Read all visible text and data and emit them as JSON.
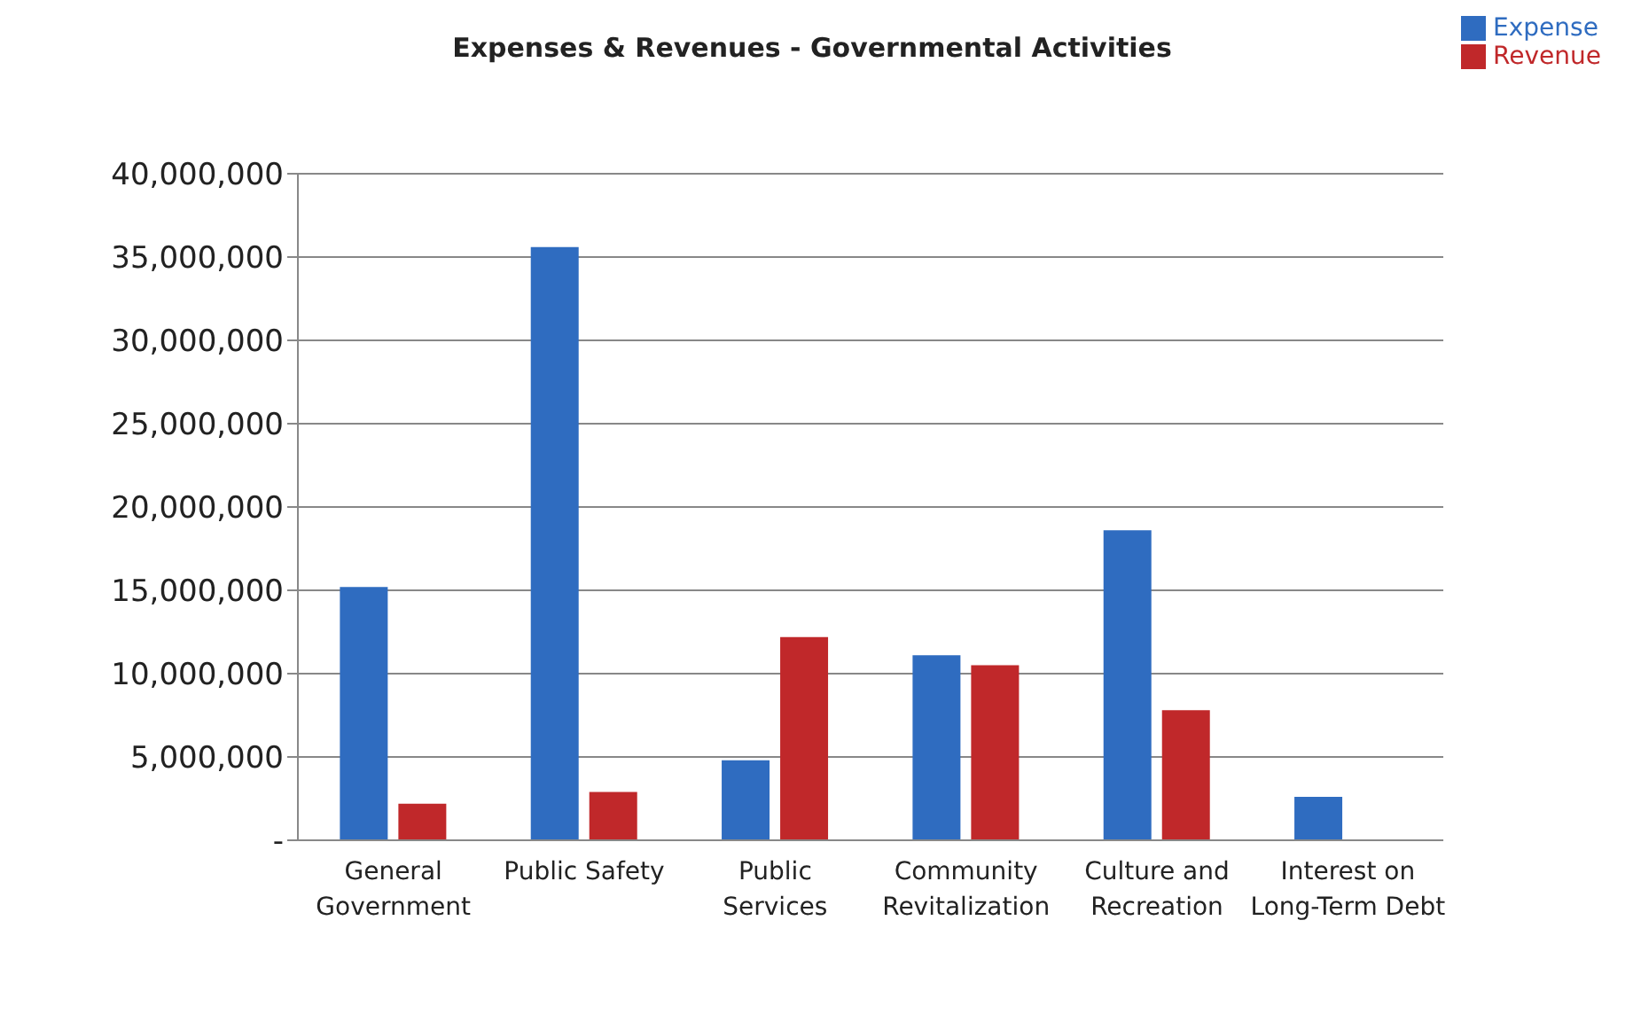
{
  "chart_data": {
    "type": "bar",
    "title": "Expenses & Revenues - Governmental Activities",
    "categories": [
      "General Government",
      "Public Safety",
      "Public Services",
      "Community Revitalization",
      "Culture and Recreation",
      "Interest on Long-Term Debt"
    ],
    "series": [
      {
        "name": "Expense",
        "color": "#2f6cc0",
        "values": [
          15200000,
          35600000,
          4800000,
          11100000,
          18600000,
          2600000
        ]
      },
      {
        "name": "Revenue",
        "color": "#c0282a",
        "values": [
          2200000,
          2900000,
          12200000,
          10500000,
          7800000,
          null
        ]
      }
    ],
    "ylim": [
      0,
      40000000
    ],
    "yticks": [
      {
        "value": 0,
        "label": "-"
      },
      {
        "value": 5000000,
        "label": "5,000,000"
      },
      {
        "value": 10000000,
        "label": "10,000,000"
      },
      {
        "value": 15000000,
        "label": "15,000,000"
      },
      {
        "value": 20000000,
        "label": "20,000,000"
      },
      {
        "value": 25000000,
        "label": "25,000,000"
      },
      {
        "value": 30000000,
        "label": "30,000,000"
      },
      {
        "value": 35000000,
        "label": "35,000,000"
      },
      {
        "value": 40000000,
        "label": "40,000,000"
      }
    ],
    "grid": "y",
    "legend": "top right"
  }
}
